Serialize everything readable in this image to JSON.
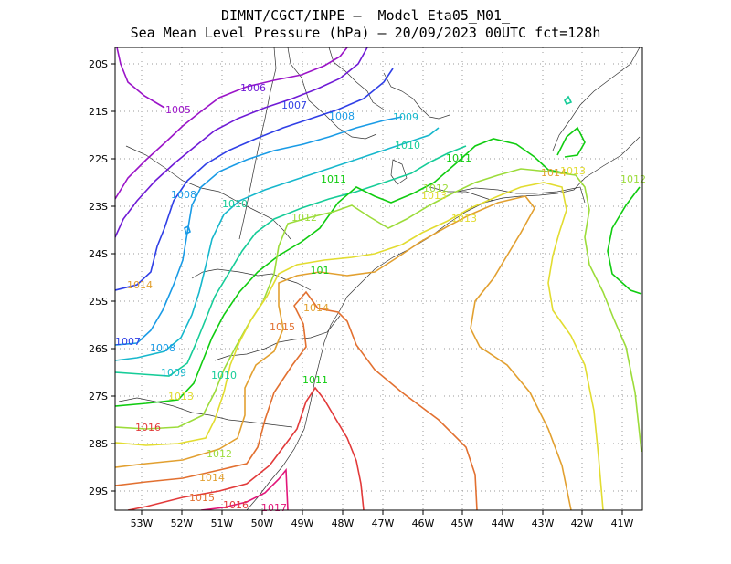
{
  "title_line1": "DIMNT/CGCT/INPE —  Model Eta05_M01_",
  "title_line2": "Sea Mean Level Pressure (hPa) — 20/09/2023 00UTC fct=128h",
  "x_ticks": [
    "53W",
    "52W",
    "51W",
    "50W",
    "49W",
    "48W",
    "47W",
    "46W",
    "45W",
    "44W",
    "43W",
    "42W",
    "41W"
  ],
  "y_ticks": [
    "20S",
    "21S",
    "22S",
    "23S",
    "24S",
    "25S",
    "26S",
    "27S",
    "28S",
    "29S"
  ],
  "contour_colors": {
    "1005": "#9b14c8",
    "1006": "#6f1ad6",
    "1007": "#2f3fe6",
    "1008": "#199be6",
    "1009": "#16b7cc",
    "1010": "#16cc98",
    "1011": "#10cc10",
    "1012": "#9cdc3a",
    "1013": "#e2dc30",
    "1014": "#e2a030",
    "1015": "#e27030",
    "1016": "#e23a3a",
    "1017": "#e2167a"
  },
  "contour_labels": [
    {
      "text": "1005",
      "color_key": "1005"
    },
    {
      "text": "1006",
      "color_key": "1006"
    },
    {
      "text": "1007",
      "color_key": "1007"
    },
    {
      "text": "1008",
      "color_key": "1008"
    },
    {
      "text": "1009",
      "color_key": "1009"
    },
    {
      "text": "1010",
      "color_key": "1010"
    },
    {
      "text": "1011",
      "color_key": "1011"
    },
    {
      "text": "1008",
      "color_key": "1008"
    },
    {
      "text": "1010",
      "color_key": "1010"
    },
    {
      "text": "1011",
      "color_key": "1011"
    },
    {
      "text": "1012",
      "color_key": "1012"
    },
    {
      "text": "1013",
      "color_key": "1013"
    },
    {
      "text": "1012",
      "color_key": "1012"
    },
    {
      "text": "1013",
      "color_key": "1013"
    },
    {
      "text": "1014",
      "color_key": "1014"
    },
    {
      "text": "1013",
      "color_key": "1013"
    },
    {
      "text": "1012",
      "color_key": "1012"
    },
    {
      "text": "101",
      "color_key": "1011"
    },
    {
      "text": "1014",
      "color_key": "1014"
    },
    {
      "text": "1015",
      "color_key": "1015"
    },
    {
      "text": "1014",
      "color_key": "1014"
    },
    {
      "text": "1007",
      "color_key": "1007"
    },
    {
      "text": "1008",
      "color_key": "1008"
    },
    {
      "text": "1009",
      "color_key": "1009"
    },
    {
      "text": "1010",
      "color_key": "1010"
    },
    {
      "text": "1013",
      "color_key": "1013"
    },
    {
      "text": "1011",
      "color_key": "1011"
    },
    {
      "text": "1016",
      "color_key": "1016"
    },
    {
      "text": "1012",
      "color_key": "1012"
    },
    {
      "text": "1014",
      "color_key": "1014"
    },
    {
      "text": "1015",
      "color_key": "1015"
    },
    {
      "text": "1016",
      "color_key": "1016"
    },
    {
      "text": "1017",
      "color_key": "1017"
    }
  ]
}
